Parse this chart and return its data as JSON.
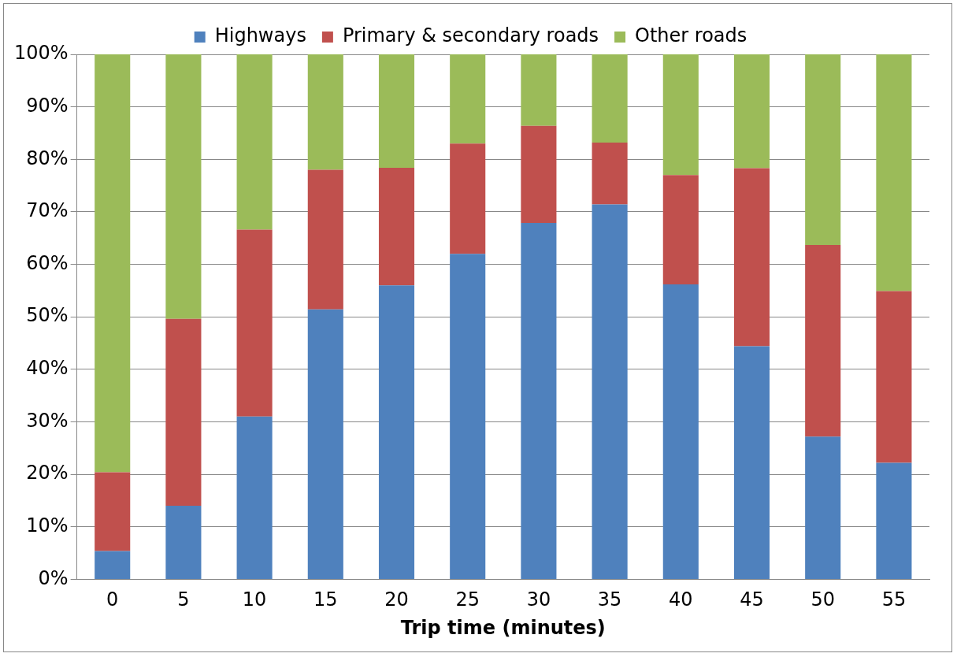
{
  "chart_data": {
    "type": "bar",
    "stacked": true,
    "xlabel": "Trip time (minutes)",
    "categories": [
      "0",
      "5",
      "10",
      "15",
      "20",
      "25",
      "30",
      "35",
      "40",
      "45",
      "50",
      "55"
    ],
    "series": [
      {
        "name": "Highways",
        "color": "#4f81bd",
        "values": [
          5.4,
          14.0,
          31.0,
          51.4,
          56.0,
          62.0,
          67.9,
          71.4,
          56.2,
          44.4,
          27.2,
          22.2
        ]
      },
      {
        "name": "Primary & secondary roads",
        "color": "#c0504d",
        "values": [
          15.0,
          35.6,
          35.6,
          26.6,
          22.4,
          21.0,
          18.5,
          11.8,
          20.8,
          33.9,
          36.5,
          32.7
        ]
      },
      {
        "name": "Other roads",
        "color": "#9bbb59",
        "values": [
          79.6,
          50.4,
          33.4,
          22.0,
          21.6,
          17.0,
          13.6,
          16.8,
          23.0,
          21.7,
          36.3,
          45.1
        ]
      }
    ],
    "ylim": [
      0,
      100
    ],
    "yticks": [
      {
        "value": 0,
        "label": "0%"
      },
      {
        "value": 10,
        "label": "10%"
      },
      {
        "value": 20,
        "label": "20%"
      },
      {
        "value": 30,
        "label": "30%"
      },
      {
        "value": 40,
        "label": "40%"
      },
      {
        "value": 50,
        "label": "50%"
      },
      {
        "value": 60,
        "label": "60%"
      },
      {
        "value": 70,
        "label": "70%"
      },
      {
        "value": 80,
        "label": "80%"
      },
      {
        "value": 90,
        "label": "90%"
      },
      {
        "value": 100,
        "label": "100%"
      }
    ],
    "grid": "y",
    "legend": "top"
  }
}
